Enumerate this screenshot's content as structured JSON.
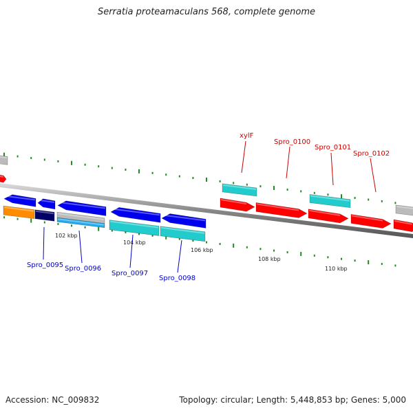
{
  "title": "Serratia proteamaculans 568, complete genome",
  "footer": {
    "accession": "Accession: NC_009832",
    "summary": "Topology: circular; Length: 5,448,853 bp; Genes: 5,000"
  },
  "scale_labels": [
    "102 kbp",
    "104 kbp",
    "106 kbp",
    "108 kbp",
    "110 kbp"
  ],
  "forward_gene_labels": [
    "xylF",
    "Spro_0100",
    "Spro_0101",
    "Spro_0102"
  ],
  "reverse_gene_labels": [
    "Spro_0095",
    "Spro_0096",
    "Spro_0097",
    "Spro_0098"
  ],
  "colors": {
    "forward_cds": "#ff0000",
    "reverse_cds": "#0000ee",
    "rna": "#22cccc",
    "other": "#bbbbbb",
    "orange": "#ff8c00",
    "navy": "#000066",
    "backbone": "#888888",
    "tick": "#228b22",
    "forward_label": "#cc0000",
    "reverse_label": "#0000cc"
  },
  "icons": [
    "forward-arrow",
    "reverse-arrow"
  ]
}
